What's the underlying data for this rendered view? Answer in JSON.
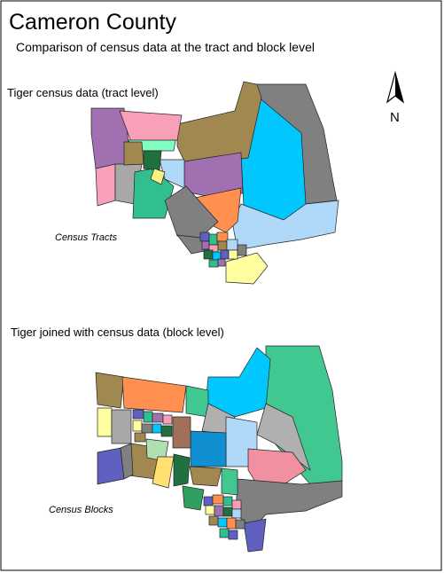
{
  "header": {
    "title": "Cameron County",
    "subtitle": "Comparison of census data at the tract and block level"
  },
  "north_arrow": {
    "label": "N"
  },
  "maps": [
    {
      "heading": "Tiger census data (tract level)",
      "label": "Census Tracts"
    },
    {
      "heading": "Tiger joined with census data (block level)",
      "label": "Census Blocks"
    }
  ]
}
